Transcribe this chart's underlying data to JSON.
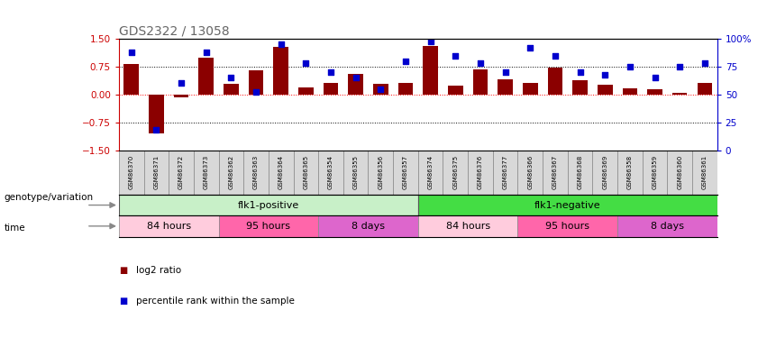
{
  "title": "GDS2322 / 13058",
  "samples": [
    "GSM86370",
    "GSM86371",
    "GSM86372",
    "GSM86373",
    "GSM86362",
    "GSM86363",
    "GSM86364",
    "GSM86365",
    "GSM86354",
    "GSM86355",
    "GSM86356",
    "GSM86357",
    "GSM86374",
    "GSM86375",
    "GSM86376",
    "GSM86377",
    "GSM86366",
    "GSM86367",
    "GSM86368",
    "GSM86369",
    "GSM86358",
    "GSM86359",
    "GSM86360",
    "GSM86361"
  ],
  "log2_ratio": [
    0.82,
    -1.05,
    -0.08,
    1.0,
    0.28,
    0.65,
    1.28,
    0.18,
    0.3,
    0.55,
    0.28,
    0.3,
    1.3,
    0.25,
    0.68,
    0.4,
    0.32,
    0.72,
    0.38,
    0.27,
    0.16,
    0.13,
    0.05,
    0.3
  ],
  "percentile": [
    88,
    18,
    60,
    88,
    65,
    52,
    95,
    78,
    70,
    65,
    55,
    80,
    98,
    85,
    78,
    70,
    92,
    85,
    70,
    68,
    75,
    65,
    75,
    78
  ],
  "bar_color": "#8B0000",
  "dot_color": "#0000CD",
  "bg_color": "#ffffff",
  "ylim": [
    -1.5,
    1.5
  ],
  "y2lim": [
    0,
    100
  ],
  "yticks": [
    -1.5,
    -0.75,
    0,
    0.75,
    1.5
  ],
  "y2ticks": [
    0,
    25,
    50,
    75,
    100
  ],
  "hlines_black": [
    -0.75,
    0.75
  ],
  "hline_red": 0.0,
  "genotype_groups": [
    {
      "label": "flk1-positive",
      "start": 0,
      "end": 12,
      "color": "#c8f0c8"
    },
    {
      "label": "flk1-negative",
      "start": 12,
      "end": 24,
      "color": "#44dd44"
    }
  ],
  "time_groups": [
    {
      "label": "84 hours",
      "start": 0,
      "end": 4,
      "color": "#ffccdd"
    },
    {
      "label": "95 hours",
      "start": 4,
      "end": 8,
      "color": "#ff66aa"
    },
    {
      "label": "8 days",
      "start": 8,
      "end": 12,
      "color": "#dd66cc"
    },
    {
      "label": "84 hours",
      "start": 12,
      "end": 16,
      "color": "#ffccdd"
    },
    {
      "label": "95 hours",
      "start": 16,
      "end": 20,
      "color": "#ff66aa"
    },
    {
      "label": "8 days",
      "start": 20,
      "end": 24,
      "color": "#dd66cc"
    }
  ],
  "legend_items": [
    {
      "label": "log2 ratio",
      "color": "#8B0000"
    },
    {
      "label": "percentile rank within the sample",
      "color": "#0000CD"
    }
  ],
  "genotype_label": "genotype/variation",
  "time_label": "time",
  "title_color": "#666666",
  "left_label_color": "#CC0000",
  "right_label_color": "#0000CC",
  "sample_box_color": "#d8d8d8",
  "sample_box_edge": "#888888"
}
